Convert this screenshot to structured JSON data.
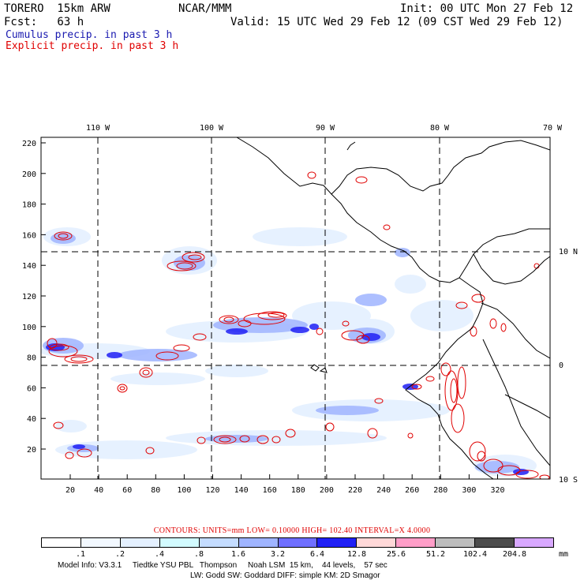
{
  "header": {
    "model": "TORERO  15km ARW",
    "org": "NCAR/MMM",
    "init": "Init: 00 UTC Mon 27 Feb 12",
    "fcst": "Fcst:   63 h",
    "valid": "Valid: 15 UTC Wed 29 Feb 12 (09 CST Wed 29 Feb 12)",
    "legend_cumulus": "Cumulus precip. in past 3 h",
    "legend_explicit": "Explicit precip. in past 3 h"
  },
  "map": {
    "lon_labels": [
      "110 W",
      "100 W",
      "90 W",
      "80 W",
      "70 W"
    ],
    "lat_labels": [
      "10 N",
      "0",
      "10 S"
    ],
    "x_ticks": [
      "20",
      "40",
      "60",
      "80",
      "100",
      "120",
      "140",
      "160",
      "180",
      "200",
      "220",
      "240",
      "260",
      "280",
      "300",
      "320"
    ],
    "y_ticks": [
      "220",
      "200",
      "180",
      "160",
      "140",
      "120",
      "100",
      "80",
      "60",
      "40",
      "20"
    ],
    "colors": {
      "coast": "#000000",
      "grid": "#000000",
      "contour": "#e00000"
    }
  },
  "contours": {
    "text": "CONTOURS:  UNITS=mm  LOW= 0.10000     HIGH=  102.40     INTERVAL=X  4.0000"
  },
  "colorbar": {
    "colors": [
      "#ffffff",
      "#f2f8ff",
      "#e4f0ff",
      "#d2fbff",
      "#c4dcff",
      "#9fb4ff",
      "#6f6fff",
      "#2020f5",
      "#ffd8d8",
      "#ff9ec8",
      "#bdbdbd",
      "#4c4c4c",
      "#d8a8ff"
    ],
    "labels": [
      ".1",
      ".2",
      ".4",
      ".8",
      "1.6",
      "3.2",
      "6.4",
      "12.8",
      "25.6",
      "51.2",
      "102.4",
      "204.8"
    ],
    "unit": "mm"
  },
  "model_info": {
    "line1": "Model Info: V3.3.1     Tiedtke YSU PBL   Thompson     Noah LSM  15 km,    44 levels,    57 sec",
    "line2": "LW: Godd SW: Goddard DIFF: simple KM: 2D Smagor"
  }
}
